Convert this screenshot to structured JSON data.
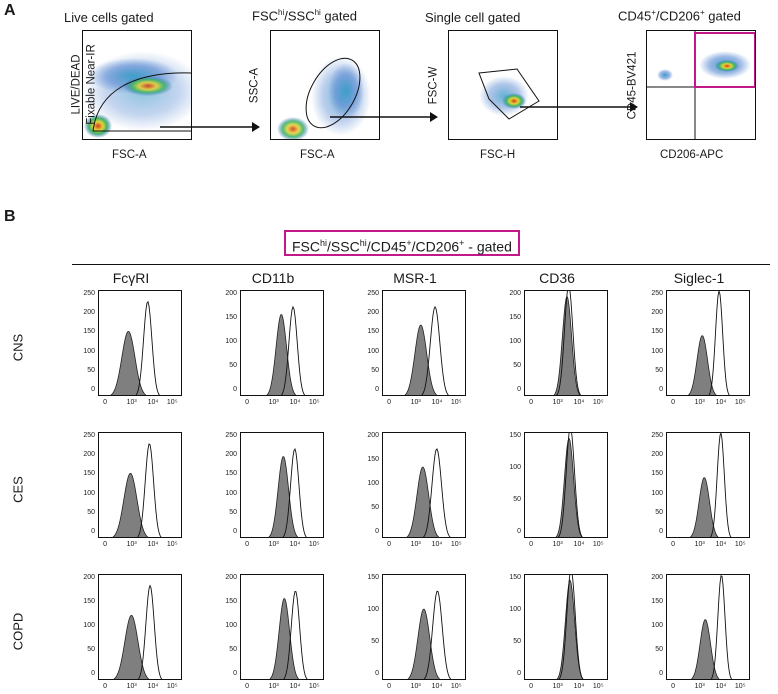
{
  "panel_a": {
    "letter": "A",
    "plots": [
      {
        "title_html": "Live cells gated",
        "ylabel_1": "LIVE/DEAD",
        "ylabel_2": "Fixable Near-IR",
        "xlabel": "FSC-A"
      },
      {
        "title_pre": "FSC",
        "title_sup1": "hi",
        "title_mid": "/SSC",
        "title_sup2": "hi",
        "title_post": " gated",
        "ylabel": "SSC-A",
        "xlabel": "FSC-A"
      },
      {
        "title_html": "Single cell gated",
        "ylabel": "FSC-W",
        "xlabel": "FSC-H"
      },
      {
        "title_pre": "CD45",
        "title_sup1": "+",
        "title_mid": "/CD206",
        "title_sup2": "+",
        "title_post": " gated",
        "ylabel": "CD45-BV421",
        "xlabel": "CD206-APC"
      }
    ]
  },
  "panel_b": {
    "letter": "B",
    "gate_label": {
      "p1": "FSC",
      "s1": "hi",
      "p2": "/SSC",
      "s2": "hi",
      "p3": "/CD45",
      "s3": "+",
      "p4": "/CD206",
      "s4": "+",
      "p5": " - gated"
    },
    "markers": [
      "FcγRI",
      "CD11b",
      "MSR-1",
      "CD36",
      "Siglec-1"
    ],
    "rows": [
      "CNS",
      "CES",
      "COPD"
    ],
    "x_ticks": [
      "0",
      "10³",
      "10⁴",
      "10⁵"
    ],
    "y_ticks": [
      [
        [
          "250",
          "200",
          "150",
          "100",
          "50",
          "0"
        ],
        [
          "200",
          "150",
          "100",
          "50",
          "0"
        ],
        [
          "250",
          "200",
          "150",
          "100",
          "50",
          "0"
        ],
        [
          "200",
          "150",
          "100",
          "50",
          "0"
        ],
        [
          "250",
          "200",
          "150",
          "100",
          "50",
          "0"
        ]
      ],
      [
        [
          "250",
          "200",
          "150",
          "100",
          "50",
          "0"
        ],
        [
          "250",
          "200",
          "150",
          "100",
          "50",
          "0"
        ],
        [
          "200",
          "150",
          "100",
          "50",
          "0"
        ],
        [
          "150",
          "100",
          "50",
          "0"
        ],
        [
          "250",
          "200",
          "150",
          "100",
          "50",
          "0"
        ]
      ],
      [
        [
          "200",
          "150",
          "100",
          "50",
          "0"
        ],
        [
          "200",
          "150",
          "100",
          "50",
          "0"
        ],
        [
          "150",
          "100",
          "50",
          "0"
        ],
        [
          "150",
          "100",
          "50",
          "0"
        ],
        [
          "200",
          "150",
          "100",
          "50",
          "0"
        ]
      ]
    ]
  },
  "colors": {
    "gate_box": "#c2188a",
    "filled": "#7f7f7f",
    "line": "#111111"
  }
}
